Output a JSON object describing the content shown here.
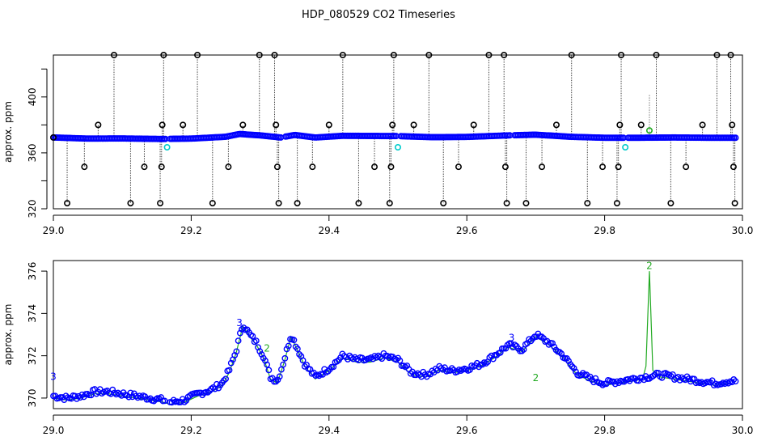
{
  "title": "HDP_080529  CO2 Timeseries",
  "chart_data": [
    {
      "type": "scatter",
      "title": "",
      "xlabel": "",
      "ylabel": "approx. ppm",
      "xlim": [
        29.0,
        30.0
      ],
      "ylim": [
        320,
        430
      ],
      "xticks": [
        29.0,
        29.2,
        29.4,
        29.6,
        29.8,
        30.0
      ],
      "yticks": [
        320,
        360,
        400
      ],
      "extra_yticks": [
        340,
        380,
        420
      ],
      "tick_labels_x": [
        "29.0",
        "29.2",
        "29.4",
        "29.6",
        "29.8",
        "30.0"
      ],
      "tick_labels_y": [
        "320",
        "360",
        "400"
      ],
      "grid": false,
      "series": [
        {
          "color": "#0000ff",
          "marker": "circle",
          "baseline": [
            [
              29.0,
              371.0
            ],
            [
              29.05,
              370.2
            ],
            [
              29.1,
              370.3
            ],
            [
              29.16,
              369.9
            ],
            [
              29.165,
              370.0
            ],
            [
              29.2,
              370.2
            ],
            [
              29.25,
              371.5
            ],
            [
              29.27,
              373.5
            ],
            [
              29.3,
              372.5
            ],
            [
              29.33,
              371.0
            ],
            [
              29.35,
              372.8
            ],
            [
              29.38,
              371.0
            ],
            [
              29.42,
              372.2
            ],
            [
              29.5,
              372.0
            ],
            [
              29.55,
              371.2
            ],
            [
              29.6,
              371.4
            ],
            [
              29.66,
              372.5
            ],
            [
              29.7,
              373.0
            ],
            [
              29.75,
              371.5
            ],
            [
              29.8,
              370.8
            ],
            [
              29.85,
              370.8
            ],
            [
              29.9,
              371.0
            ],
            [
              29.95,
              370.8
            ],
            [
              29.99,
              370.8
            ]
          ],
          "gaps": [
            [
              29.163,
              29.168
            ],
            [
              29.33,
              29.335
            ],
            [
              29.498,
              29.503
            ],
            [
              29.663,
              29.668
            ],
            [
              29.828,
              29.833
            ]
          ]
        },
        {
          "color": "#000000",
          "marker": "circle-outline",
          "points": [
            [
              29.0,
              371
            ],
            [
              29.02,
              324
            ],
            [
              29.045,
              350
            ],
            [
              29.065,
              380
            ],
            [
              29.088,
              430
            ],
            [
              29.112,
              324
            ],
            [
              29.132,
              350
            ],
            [
              29.155,
              324
            ],
            [
              29.157,
              350
            ],
            [
              29.158,
              380
            ],
            [
              29.16,
              430
            ],
            [
              29.188,
              380
            ],
            [
              29.209,
              430
            ],
            [
              29.231,
              324
            ],
            [
              29.254,
              350
            ],
            [
              29.275,
              380
            ],
            [
              29.299,
              430
            ],
            [
              29.321,
              430
            ],
            [
              29.323,
              380
            ],
            [
              29.325,
              350
            ],
            [
              29.327,
              324
            ],
            [
              29.354,
              324
            ],
            [
              29.376,
              350
            ],
            [
              29.4,
              380
            ],
            [
              29.42,
              430
            ],
            [
              29.443,
              324
            ],
            [
              29.466,
              350
            ],
            [
              29.488,
              324
            ],
            [
              29.49,
              350
            ],
            [
              29.492,
              380
            ],
            [
              29.494,
              430
            ],
            [
              29.523,
              380
            ],
            [
              29.545,
              430
            ],
            [
              29.566,
              324
            ],
            [
              29.588,
              350
            ],
            [
              29.61,
              380
            ],
            [
              29.632,
              430
            ],
            [
              29.654,
              430
            ],
            [
              29.656,
              350
            ],
            [
              29.658,
              324
            ],
            [
              29.686,
              324
            ],
            [
              29.709,
              350
            ],
            [
              29.73,
              380
            ],
            [
              29.752,
              430
            ],
            [
              29.775,
              324
            ],
            [
              29.797,
              350
            ],
            [
              29.818,
              324
            ],
            [
              29.82,
              350
            ],
            [
              29.822,
              380
            ],
            [
              29.824,
              430
            ],
            [
              29.853,
              380
            ],
            [
              29.875,
              430
            ],
            [
              29.896,
              324
            ],
            [
              29.918,
              350
            ],
            [
              29.942,
              380
            ],
            [
              29.963,
              430
            ],
            [
              29.983,
              430
            ],
            [
              29.985,
              380
            ],
            [
              29.987,
              350
            ],
            [
              29.989,
              324
            ]
          ]
        },
        {
          "color": "#00cccc",
          "marker": "circle",
          "points": [
            [
              29.165,
              364
            ],
            [
              29.5,
              364
            ],
            [
              29.83,
              364
            ]
          ]
        },
        {
          "color": "#22aa22",
          "marker": "circle",
          "points": [
            [
              29.865,
              376
            ]
          ]
        }
      ]
    },
    {
      "type": "scatter",
      "title": "",
      "xlabel": "",
      "ylabel": "approx. ppm",
      "xlim": [
        29.0,
        30.0
      ],
      "ylim": [
        369.5,
        376.5
      ],
      "xticks": [
        29.0,
        29.2,
        29.4,
        29.6,
        29.8,
        30.0
      ],
      "yticks": [
        370,
        372,
        374,
        376
      ],
      "tick_labels_x": [
        "29.0",
        "29.2",
        "29.4",
        "29.6",
        "29.8",
        "30.0"
      ],
      "tick_labels_y": [
        "370",
        "372",
        "374",
        "376"
      ],
      "grid": false,
      "series": [
        {
          "color": "#0000ff",
          "marker": "circle",
          "points": [
            [
              29.0,
              370.1
            ],
            [
              29.02,
              370.0
            ],
            [
              29.04,
              370.1
            ],
            [
              29.06,
              370.3
            ],
            [
              29.08,
              370.3
            ],
            [
              29.1,
              370.2
            ],
            [
              29.12,
              370.1
            ],
            [
              29.14,
              370.0
            ],
            [
              29.16,
              369.9
            ],
            [
              29.17,
              369.8
            ],
            [
              29.19,
              369.9
            ],
            [
              29.21,
              370.2
            ],
            [
              29.23,
              370.4
            ],
            [
              29.245,
              370.7
            ],
            [
              29.255,
              371.3
            ],
            [
              29.265,
              372.2
            ],
            [
              29.275,
              373.5
            ],
            [
              29.285,
              373.0
            ],
            [
              29.295,
              372.6
            ],
            [
              29.305,
              372.0
            ],
            [
              29.315,
              371.0
            ],
            [
              29.325,
              370.8
            ],
            [
              29.335,
              371.8
            ],
            [
              29.345,
              373.0
            ],
            [
              29.355,
              372.3
            ],
            [
              29.365,
              371.6
            ],
            [
              29.38,
              371.0
            ],
            [
              29.4,
              371.4
            ],
            [
              29.42,
              372.0
            ],
            [
              29.44,
              371.8
            ],
            [
              29.46,
              371.8
            ],
            [
              29.48,
              372.0
            ],
            [
              29.5,
              371.8
            ],
            [
              29.52,
              371.2
            ],
            [
              29.54,
              371.1
            ],
            [
              29.56,
              371.4
            ],
            [
              29.58,
              371.3
            ],
            [
              29.6,
              371.4
            ],
            [
              29.62,
              371.6
            ],
            [
              29.64,
              372.0
            ],
            [
              29.66,
              372.5
            ],
            [
              29.68,
              372.3
            ],
            [
              29.7,
              373.0
            ],
            [
              29.72,
              372.6
            ],
            [
              29.74,
              372.0
            ],
            [
              29.76,
              371.2
            ],
            [
              29.78,
              370.9
            ],
            [
              29.8,
              370.7
            ],
            [
              29.82,
              370.8
            ],
            [
              29.84,
              370.9
            ],
            [
              29.86,
              371.0
            ],
            [
              29.88,
              371.1
            ],
            [
              29.9,
              371.0
            ],
            [
              29.92,
              370.9
            ],
            [
              29.94,
              370.8
            ],
            [
              29.96,
              370.7
            ],
            [
              29.98,
              370.8
            ]
          ]
        },
        {
          "color": "#22aa22",
          "marker": "line",
          "points": [
            [
              29.0,
              370.0
            ],
            [
              29.02,
              369.9
            ],
            [
              29.04,
              370.0
            ],
            [
              29.06,
              370.2
            ],
            [
              29.08,
              370.2
            ],
            [
              29.1,
              370.1
            ],
            [
              29.12,
              370.0
            ],
            [
              29.14,
              369.9
            ],
            [
              29.16,
              369.8
            ],
            [
              29.17,
              369.7
            ],
            [
              29.19,
              369.8
            ],
            [
              29.21,
              370.1
            ],
            [
              29.23,
              370.3
            ],
            [
              29.245,
              370.6
            ],
            [
              29.255,
              371.2
            ],
            [
              29.265,
              372.1
            ],
            [
              29.275,
              373.4
            ],
            [
              29.285,
              372.9
            ],
            [
              29.295,
              372.5
            ],
            [
              29.305,
              371.9
            ],
            [
              29.315,
              370.9
            ],
            [
              29.325,
              370.7
            ],
            [
              29.335,
              371.7
            ],
            [
              29.345,
              372.9
            ],
            [
              29.355,
              372.2
            ],
            [
              29.365,
              371.5
            ],
            [
              29.38,
              370.9
            ],
            [
              29.4,
              371.3
            ],
            [
              29.42,
              371.9
            ],
            [
              29.44,
              371.7
            ],
            [
              29.46,
              371.7
            ],
            [
              29.48,
              371.9
            ],
            [
              29.5,
              371.7
            ],
            [
              29.52,
              371.1
            ],
            [
              29.54,
              371.0
            ],
            [
              29.56,
              371.3
            ],
            [
              29.58,
              371.2
            ],
            [
              29.6,
              371.3
            ],
            [
              29.62,
              371.5
            ],
            [
              29.64,
              371.9
            ],
            [
              29.66,
              372.4
            ],
            [
              29.68,
              372.2
            ],
            [
              29.7,
              372.9
            ],
            [
              29.72,
              372.5
            ],
            [
              29.74,
              371.9
            ],
            [
              29.76,
              371.1
            ],
            [
              29.78,
              370.8
            ],
            [
              29.8,
              370.6
            ],
            [
              29.82,
              370.7
            ],
            [
              29.84,
              370.8
            ],
            [
              29.855,
              370.9
            ],
            [
              29.86,
              371.5
            ],
            [
              29.865,
              376.0
            ],
            [
              29.87,
              371.3
            ],
            [
              29.88,
              371.0
            ],
            [
              29.9,
              370.9
            ],
            [
              29.92,
              370.8
            ],
            [
              29.94,
              370.7
            ],
            [
              29.96,
              370.6
            ],
            [
              29.98,
              370.7
            ]
          ]
        }
      ],
      "annotations": [
        {
          "text": "3",
          "x": 29.0,
          "y": 370.85,
          "color": "#0000ff"
        },
        {
          "text": "2",
          "x": 29.865,
          "y": 376.1,
          "color": "#22aa22"
        },
        {
          "text": "3",
          "x": 29.27,
          "y": 373.4,
          "color": "#0000ff"
        },
        {
          "text": "2",
          "x": 29.31,
          "y": 372.2,
          "color": "#22aa22"
        },
        {
          "text": "3",
          "x": 29.665,
          "y": 372.7,
          "color": "#0000ff"
        },
        {
          "text": "2",
          "x": 29.7,
          "y": 370.8,
          "color": "#22aa22"
        }
      ]
    }
  ]
}
